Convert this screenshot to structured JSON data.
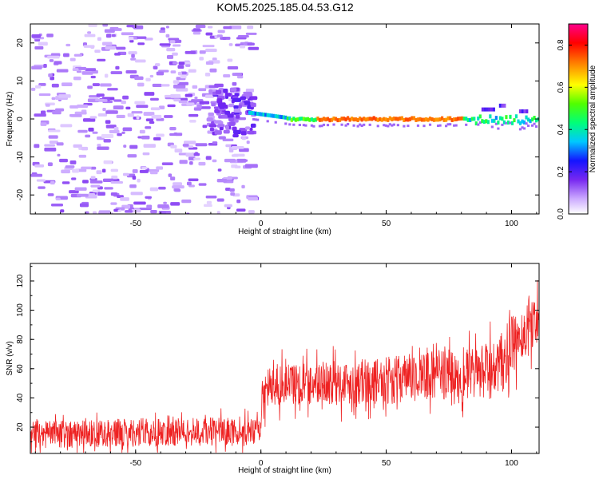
{
  "title": "KOM5.2025.185.04.53.G12",
  "colors": {
    "snr_line": "#ee2222",
    "frame": "#000000",
    "background": "#ffffff"
  },
  "chart_data": [
    {
      "type": "heatmap",
      "xlabel": "Height of straight line (km)",
      "ylabel": "Frequency (Hz)",
      "xlim": [
        -92,
        111
      ],
      "ylim": [
        -25,
        25
      ],
      "xticks": [
        -50,
        0,
        50,
        100
      ],
      "yticks": [
        -20,
        -10,
        0,
        10,
        20
      ],
      "colorbar": {
        "label": "Normalized spectral amplitude",
        "range": [
          0,
          0.9
        ],
        "ticks": [
          0.0,
          0.2,
          0.4,
          0.6,
          0.8
        ],
        "colormap": "rainbow (white → violet → blue → cyan → green → yellow → red → magenta)"
      },
      "features": [
        {
          "description": "sparse low-amplitude noise",
          "x_range": [
            -92,
            -5
          ],
          "y_range": [
            -25,
            25
          ],
          "amplitude": 0.05
        },
        {
          "description": "signal band near 0 Hz",
          "x_range": [
            -5,
            111
          ],
          "frequency_hz": 0,
          "amplitude_peak": 0.75
        },
        {
          "description": "strongest segment",
          "x_range": [
            22,
            80
          ],
          "frequency_hz": 0,
          "amplitude": 0.75
        }
      ]
    },
    {
      "type": "line",
      "xlabel": "Height of straight line (km)",
      "ylabel": "SNR (v/v)",
      "xlim": [
        -92,
        111
      ],
      "ylim": [
        2,
        132
      ],
      "xticks": [
        -50,
        0,
        50,
        100
      ],
      "yticks": [
        20,
        40,
        60,
        80,
        100,
        120
      ],
      "series": [
        {
          "x_range": [
            -92,
            111
          ],
          "mean_profile": [
            {
              "x": -92,
              "y": 15
            },
            {
              "x": -60,
              "y": 16
            },
            {
              "x": -20,
              "y": 17
            },
            {
              "x": -1,
              "y": 16
            },
            {
              "x": 1,
              "y": 45
            },
            {
              "x": 10,
              "y": 50
            },
            {
              "x": 30,
              "y": 50
            },
            {
              "x": 50,
              "y": 52
            },
            {
              "x": 70,
              "y": 56
            },
            {
              "x": 85,
              "y": 56
            },
            {
              "x": 95,
              "y": 60
            },
            {
              "x": 100,
              "y": 75
            },
            {
              "x": 111,
              "y": 95
            }
          ],
          "noise_amplitude": [
            {
              "x": -92,
              "y": 12
            },
            {
              "x": -1,
              "y": 12
            },
            {
              "x": 1,
              "y": 18
            },
            {
              "x": 50,
              "y": 20
            },
            {
              "x": 85,
              "y": 22
            },
            {
              "x": 95,
              "y": 28
            },
            {
              "x": 111,
              "y": 22
            }
          ]
        }
      ]
    }
  ]
}
